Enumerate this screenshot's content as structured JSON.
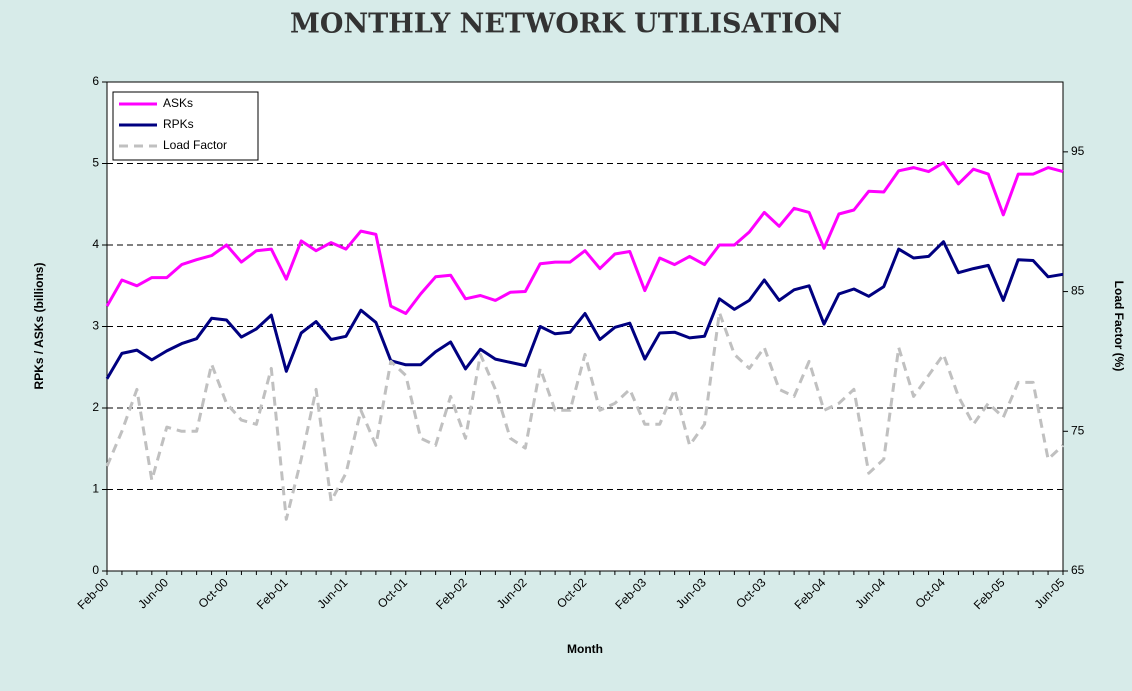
{
  "chart_data": {
    "type": "line",
    "title": "MONTHLY NETWORK UTILISATION",
    "xlabel": "Month",
    "ylabel": "RPKs / ASKs (billions)",
    "y2label": "Load Factor (%)",
    "categories": [
      "Feb-00",
      null,
      null,
      null,
      "Jun-00",
      null,
      null,
      null,
      "Oct-00",
      null,
      null,
      null,
      "Feb-01",
      null,
      null,
      null,
      "Jun-01",
      null,
      null,
      null,
      "Oct-01",
      null,
      null,
      null,
      "Feb-02",
      null,
      null,
      null,
      "Jun-02",
      null,
      null,
      null,
      "Oct-02",
      null,
      null,
      null,
      "Feb-03",
      null,
      null,
      null,
      "Jun-03",
      null,
      null,
      null,
      "Oct-03",
      null,
      null,
      null,
      "Feb-04",
      null,
      null,
      null,
      "Jun-04",
      null,
      null,
      null,
      "Oct-04",
      null,
      null,
      null,
      "Feb-05",
      null,
      null,
      null,
      "Jun-05"
    ],
    "series": [
      {
        "name": "ASKs",
        "color": "#ff00ff",
        "style": "solid",
        "values": [
          3.25,
          3.57,
          3.5,
          3.6,
          3.6,
          3.76,
          3.82,
          3.87,
          4.0,
          3.79,
          3.93,
          3.95,
          3.58,
          4.05,
          3.93,
          4.03,
          3.95,
          4.17,
          4.13,
          3.25,
          3.16,
          3.4,
          3.61,
          3.63,
          3.34,
          3.38,
          3.32,
          3.42,
          3.43,
          3.77,
          3.79,
          3.79,
          3.93,
          3.71,
          3.89,
          3.92,
          3.44,
          3.84,
          3.76,
          3.86,
          3.76,
          4.0,
          4.0,
          4.16,
          4.4,
          4.23,
          4.45,
          4.4,
          3.96,
          4.38,
          4.43,
          4.66,
          4.65,
          4.91,
          4.95,
          4.9,
          5.01,
          4.75,
          4.93,
          4.87,
          4.37,
          4.87,
          4.87,
          4.95,
          4.9
        ]
      },
      {
        "name": "RPKs",
        "color": "#000080",
        "style": "solid",
        "values": [
          2.36,
          2.67,
          2.71,
          2.59,
          2.7,
          2.79,
          2.85,
          3.1,
          3.08,
          2.87,
          2.97,
          3.14,
          2.45,
          2.92,
          3.06,
          2.84,
          2.88,
          3.2,
          3.05,
          2.58,
          2.53,
          2.53,
          2.69,
          2.81,
          2.48,
          2.72,
          2.6,
          2.56,
          2.52,
          3.0,
          2.91,
          2.93,
          3.16,
          2.84,
          2.99,
          3.04,
          2.6,
          2.92,
          2.93,
          2.86,
          2.88,
          3.34,
          3.21,
          3.32,
          3.57,
          3.32,
          3.45,
          3.5,
          3.03,
          3.4,
          3.46,
          3.37,
          3.49,
          3.95,
          3.84,
          3.86,
          4.04,
          3.66,
          3.71,
          3.75,
          3.32,
          3.82,
          3.81,
          3.61,
          3.64
        ]
      },
      {
        "name": "Load Factor",
        "color": "#c0c0c0",
        "style": "dashed",
        "axis": "y2",
        "values": [
          72.5,
          75,
          78,
          71.5,
          75.3,
          75,
          75,
          79.8,
          77,
          75.8,
          75.5,
          79.5,
          68.7,
          73,
          78,
          70,
          72,
          76.5,
          74,
          80,
          79,
          74.5,
          74,
          77.5,
          74.5,
          80.5,
          78,
          74.5,
          73.8,
          79.5,
          76.5,
          76.5,
          80.5,
          76.5,
          77,
          78,
          75.5,
          75.5,
          78,
          74,
          75.5,
          83.5,
          80.5,
          79.5,
          81,
          78,
          77.5,
          80,
          76.5,
          77,
          78,
          72,
          73,
          81,
          77.5,
          79,
          80.5,
          77.5,
          75.5,
          77,
          76,
          78.5,
          78.5,
          73,
          74
        ]
      }
    ],
    "ylim": [
      0,
      6
    ],
    "yticks": [
      0,
      1,
      2,
      3,
      4,
      5,
      6
    ],
    "y2lim": [
      65,
      100
    ],
    "y2ticks": [
      65,
      75,
      85,
      95
    ],
    "grid": true,
    "legend": "upper-left"
  }
}
